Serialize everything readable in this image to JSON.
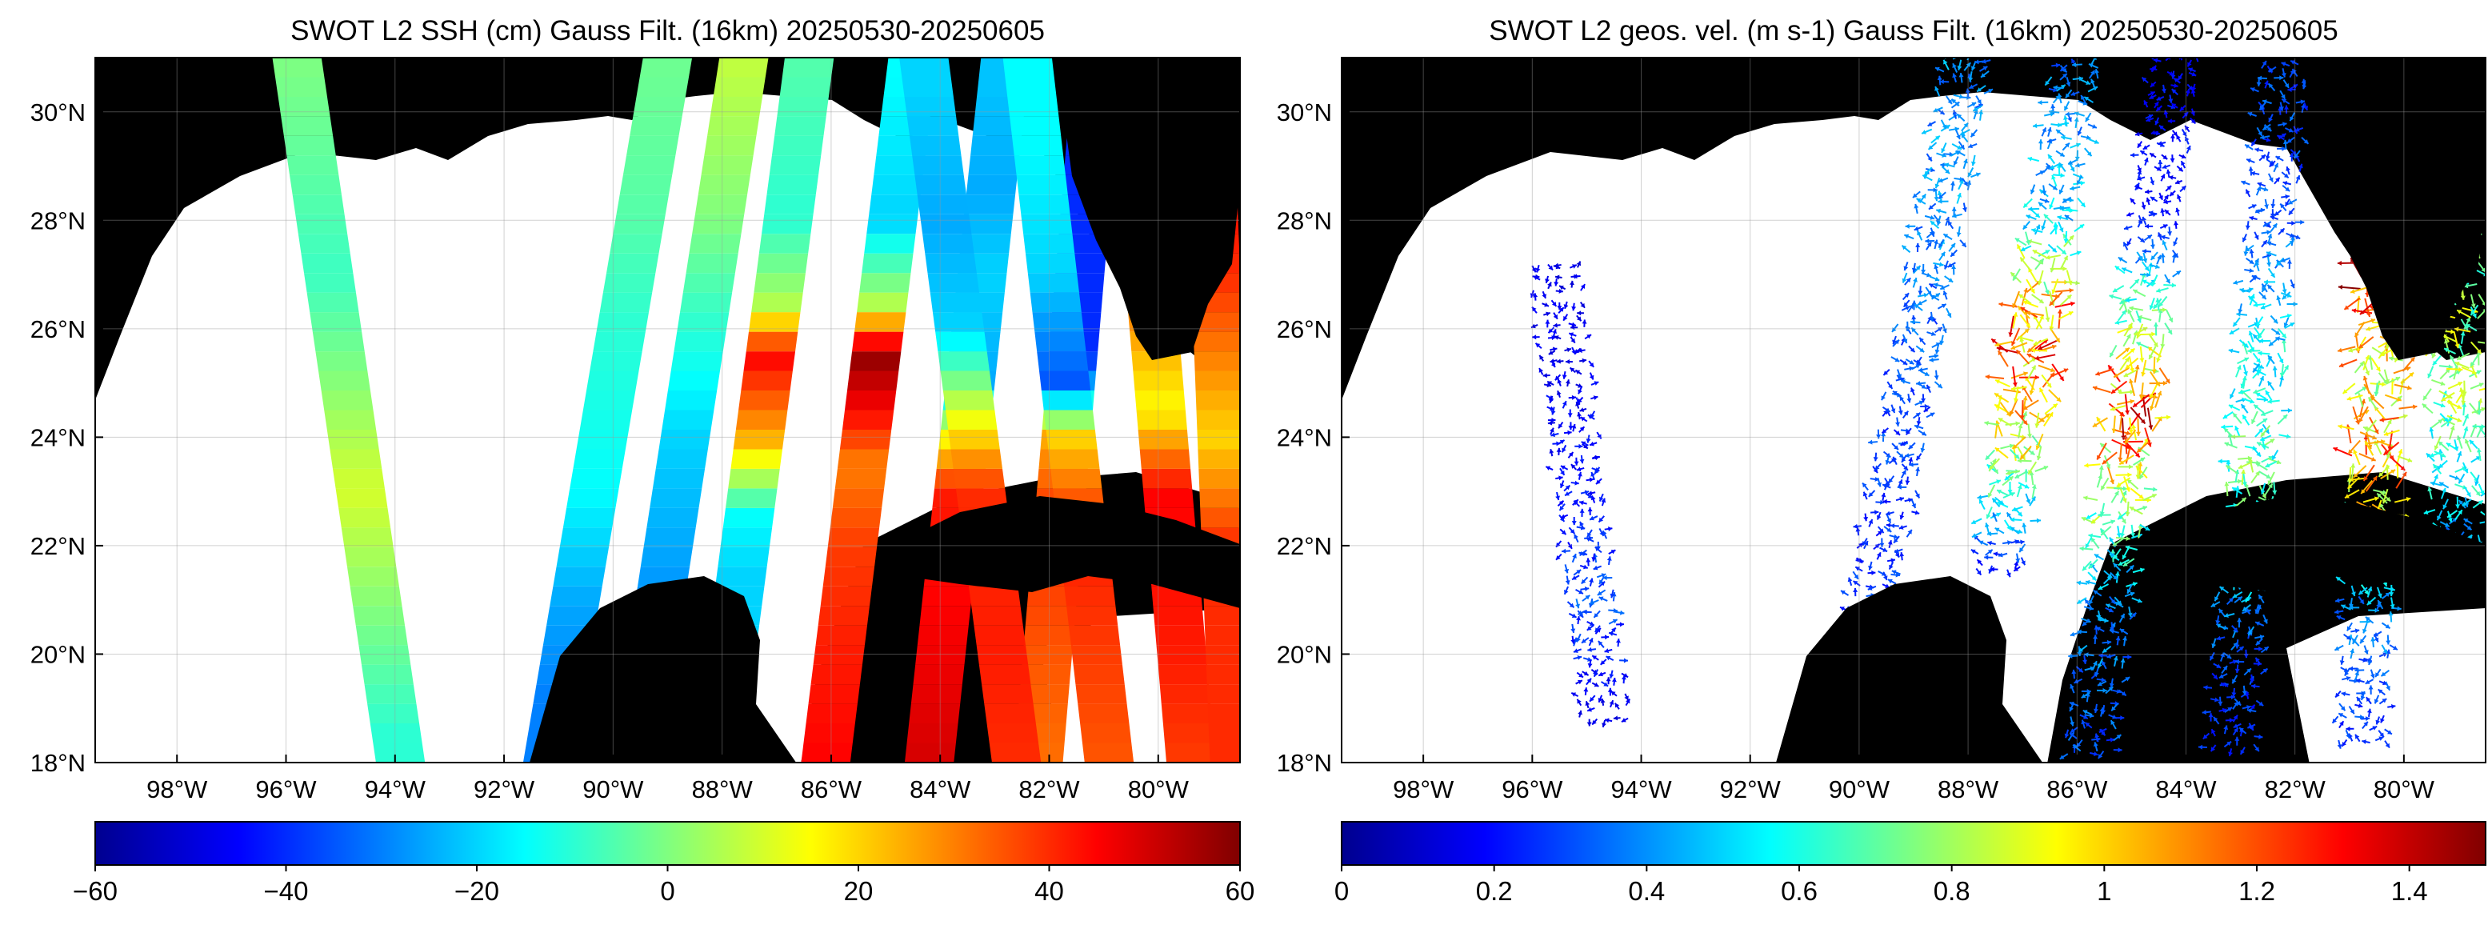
{
  "chart_data": [
    {
      "type": "heatmap",
      "title": "SWOT L2 SSH (cm) Gauss Filt. (16km) 20250530-20250605",
      "xlim": [
        -99.5,
        -78.5
      ],
      "ylim": [
        18,
        31
      ],
      "x_ticks": [
        -98,
        -96,
        -94,
        -92,
        -90,
        -88,
        -86,
        -84,
        -82,
        -80
      ],
      "x_tick_labels": [
        "98°W",
        "96°W",
        "94°W",
        "92°W",
        "90°W",
        "88°W",
        "86°W",
        "84°W",
        "82°W",
        "80°W"
      ],
      "y_ticks": [
        18,
        20,
        22,
        24,
        26,
        28,
        30
      ],
      "y_tick_labels": [
        "18°N",
        "20°N",
        "22°N",
        "24°N",
        "26°N",
        "28°N",
        "30°N"
      ],
      "grid": true,
      "colormap": "jet",
      "land_color": "#000000",
      "nodata_color": "#ffffff",
      "colorbar": {
        "range": [
          -60,
          60
        ],
        "ticks": [
          -60,
          -40,
          -20,
          0,
          20,
          40,
          60
        ],
        "tick_labels": [
          "−60",
          "−40",
          "−20",
          "0",
          "20",
          "40",
          "60"
        ]
      },
      "swath_values": [
        {
          "lon_top": -95.8,
          "lon_bottom": -93.9,
          "values": [
            {
              "lat": 31,
              "v": 0
            },
            {
              "lat": 27,
              "v": -8
            },
            {
              "lat": 23,
              "v": 10
            },
            {
              "lat": 18.5,
              "v": -10
            }
          ]
        },
        {
          "lon_top": -89.0,
          "lon_bottom": -91.2,
          "values": [
            {
              "lat": 31,
              "v": -2
            },
            {
              "lat": 28,
              "v": -5
            },
            {
              "lat": 26,
              "v": -10
            },
            {
              "lat": 23,
              "v": -15
            },
            {
              "lat": 21,
              "v": -25
            },
            {
              "lat": 19.2,
              "v": -30
            }
          ]
        },
        {
          "lon_top": -87.6,
          "lon_bottom": -89.6,
          "values": [
            {
              "lat": 31,
              "v": 8
            },
            {
              "lat": 28,
              "v": 0
            },
            {
              "lat": 26,
              "v": -10
            },
            {
              "lat": 24,
              "v": -20
            },
            {
              "lat": 22,
              "v": -25
            },
            {
              "lat": 21,
              "v": -28
            }
          ]
        },
        {
          "lon_top": -86.4,
          "lon_bottom": -88.1,
          "values": [
            {
              "lat": 31,
              "v": -5
            },
            {
              "lat": 28,
              "v": -10
            },
            {
              "lat": 26.5,
              "v": 5
            },
            {
              "lat": 25.5,
              "v": 45
            },
            {
              "lat": 24,
              "v": 25
            },
            {
              "lat": 22.5,
              "v": -15
            },
            {
              "lat": 21.5,
              "v": -20
            }
          ]
        },
        {
          "lon_top": -84.5,
          "lon_bottom": -86.1,
          "values": [
            {
              "lat": 30.6,
              "v": -15
            },
            {
              "lat": 28,
              "v": -20
            },
            {
              "lat": 26.5,
              "v": 5
            },
            {
              "lat": 25.5,
              "v": 58
            },
            {
              "lat": 24.5,
              "v": 45
            },
            {
              "lat": 23.5,
              "v": 30
            },
            {
              "lat": 22,
              "v": 38
            },
            {
              "lat": 20,
              "v": 42
            },
            {
              "lat": 18,
              "v": 45
            }
          ]
        },
        {
          "lon_top": -82.8,
          "lon_bottom": -84.2,
          "values": [
            {
              "lat": 30.5,
              "v": -22
            },
            {
              "lat": 28.5,
              "v": -25
            },
            {
              "lat": 27,
              "v": -20
            },
            {
              "lat": 25,
              "v": -25
            },
            {
              "lat": 24,
              "v": 15
            },
            {
              "lat": 23,
              "v": 42
            },
            {
              "lat": 21,
              "v": 45
            },
            {
              "lat": 18,
              "v": 50
            }
          ]
        },
        {
          "lon_top": -81.1,
          "lon_bottom": -82.2,
          "values": [
            {
              "lat": 25.5,
              "v": -40
            },
            {
              "lat": 24.8,
              "v": -20
            },
            {
              "lat": 24,
              "v": 25
            },
            {
              "lat": 22.5,
              "v": 40
            },
            {
              "lat": 20,
              "v": 35
            },
            {
              "lat": 18,
              "v": 32
            }
          ]
        },
        {
          "lon_top": -84.3,
          "lon_bottom": -82.6,
          "values": [
            {
              "lat": 30.5,
              "v": -20
            },
            {
              "lat": 28,
              "v": -25
            },
            {
              "lat": 26,
              "v": -20
            },
            {
              "lat": 24.5,
              "v": 10
            },
            {
              "lat": 23,
              "v": 40
            },
            {
              "lat": 20,
              "v": 42
            },
            {
              "lat": 18,
              "v": 40
            }
          ]
        },
        {
          "lon_top": -82.4,
          "lon_bottom": -80.9,
          "values": [
            {
              "lat": 29.5,
              "v": -15
            },
            {
              "lat": 27,
              "v": -20
            },
            {
              "lat": 25,
              "v": -35
            },
            {
              "lat": 24,
              "v": 20
            },
            {
              "lat": 22.3,
              "v": 42
            },
            {
              "lat": 20,
              "v": 38
            },
            {
              "lat": 18,
              "v": 35
            }
          ]
        },
        {
          "lon_top": -80.5,
          "lon_bottom": -79.4,
          "values": [
            {
              "lat": 31,
              "v": 18
            },
            {
              "lat": 29,
              "v": 30
            },
            {
              "lat": 27,
              "v": 35
            },
            {
              "lat": 24.5,
              "v": 15
            },
            {
              "lat": 23,
              "v": 45
            },
            {
              "lat": 20,
              "v": 42
            },
            {
              "lat": 18,
              "v": 38
            }
          ]
        },
        {
          "lon_top": -79.1,
          "lon_bottom": -78.6,
          "values": [
            {
              "lat": 31,
              "v": 55
            },
            {
              "lat": 29,
              "v": 45
            },
            {
              "lat": 27,
              "v": 40
            },
            {
              "lat": 24,
              "v": 20
            },
            {
              "lat": 22,
              "v": 40
            }
          ]
        }
      ]
    },
    {
      "type": "scatter",
      "title": "SWOT L2 geos. vel. (m s-1) Gauss Filt. (16km) 20250530-20250605",
      "xlim": [
        -99.5,
        -78.5
      ],
      "ylim": [
        18,
        31
      ],
      "x_ticks": [
        -98,
        -96,
        -94,
        -92,
        -90,
        -88,
        -86,
        -84,
        -82,
        -80
      ],
      "x_tick_labels": [
        "98°W",
        "96°W",
        "94°W",
        "92°W",
        "90°W",
        "88°W",
        "86°W",
        "84°W",
        "82°W",
        "80°W"
      ],
      "y_ticks": [
        18,
        20,
        22,
        24,
        26,
        28,
        30
      ],
      "y_tick_labels": [
        "18°N",
        "20°N",
        "22°N",
        "24°N",
        "26°N",
        "28°N",
        "30°N"
      ],
      "grid": true,
      "colormap": "jet",
      "land_color": "#000000",
      "colorbar": {
        "range": [
          0,
          1.5
        ],
        "ticks": [
          0,
          0.2,
          0.4,
          0.6,
          0.8,
          1,
          1.2,
          1.4
        ],
        "tick_labels": [
          "0",
          "0.2",
          "0.4",
          "0.6",
          "0.8",
          "1",
          "1.2",
          "1.4"
        ]
      },
      "swath_speeds": [
        {
          "lon_top": -96.0,
          "lon_bottom": -94.6,
          "lat_range": [
            18.8,
            27.2
          ],
          "values": [
            {
              "lat": 18.8,
              "v": 0.15
            },
            {
              "lat": 21,
              "v": 0.3
            },
            {
              "lat": 23,
              "v": 0.2
            },
            {
              "lat": 27,
              "v": 0.15
            }
          ]
        },
        {
          "lon_top": -88.0,
          "lon_bottom": -90.3,
          "lat_range": [
            19.3,
            31
          ],
          "values": [
            {
              "lat": 19.3,
              "v": 0.3
            },
            {
              "lat": 22,
              "v": 0.25
            },
            {
              "lat": 25,
              "v": 0.3
            },
            {
              "lat": 28,
              "v": 0.4
            },
            {
              "lat": 31,
              "v": 0.4
            }
          ]
        },
        {
          "lon_top": -86.0,
          "lon_bottom": -88.0,
          "lat_range": [
            21.6,
            31
          ],
          "values": [
            {
              "lat": 21.6,
              "v": 0.2
            },
            {
              "lat": 24,
              "v": 0.9
            },
            {
              "lat": 26,
              "v": 1.2
            },
            {
              "lat": 28,
              "v": 0.5
            },
            {
              "lat": 31,
              "v": 0.35
            }
          ]
        },
        {
          "lon_top": -84.2,
          "lon_bottom": -85.8,
          "lat_range": [
            18.2,
            31
          ],
          "values": [
            {
              "lat": 18.2,
              "v": 0.3
            },
            {
              "lat": 21,
              "v": 0.4
            },
            {
              "lat": 23,
              "v": 0.8
            },
            {
              "lat": 24.5,
              "v": 1.2
            },
            {
              "lat": 26,
              "v": 0.8
            },
            {
              "lat": 28,
              "v": 0.2
            },
            {
              "lat": 31,
              "v": 0.2
            }
          ]
        },
        {
          "lon_top": -82.2,
          "lon_bottom": -83.2,
          "lat_range": [
            18.3,
            31
          ],
          "values": [
            {
              "lat": 18.3,
              "v": 0.25
            },
            {
              "lat": 20,
              "v": 0.3
            },
            {
              "lat": 23,
              "v": 0.7
            },
            {
              "lat": 25,
              "v": 0.6
            },
            {
              "lat": 28,
              "v": 0.3
            },
            {
              "lat": 31,
              "v": 0.3
            }
          ]
        },
        {
          "lon_top": -80.2,
          "lon_bottom": -80.8,
          "lat_range": [
            18.4,
            31
          ],
          "values": [
            {
              "lat": 18.4,
              "v": 0.25
            },
            {
              "lat": 21,
              "v": 0.4
            },
            {
              "lat": 23.5,
              "v": 1.1
            },
            {
              "lat": 25,
              "v": 0.9
            },
            {
              "lat": 27,
              "v": 1.3
            },
            {
              "lat": 31,
              "v": 1.2
            }
          ]
        },
        {
          "lon_top": -79.1,
          "lon_bottom": -79.0,
          "lat_range": [
            22,
            31
          ],
          "values": [
            {
              "lat": 22,
              "v": 0.4
            },
            {
              "lat": 25,
              "v": 0.8
            },
            {
              "lat": 28,
              "v": 0.7
            },
            {
              "lat": 31,
              "v": 0.6
            }
          ]
        }
      ]
    }
  ]
}
